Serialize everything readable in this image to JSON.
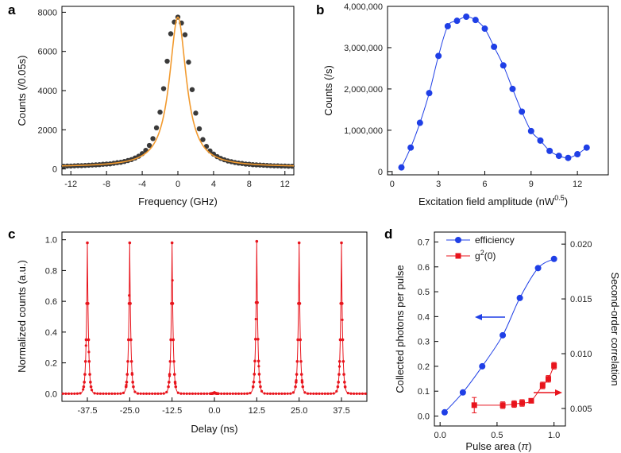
{
  "chart_data": [
    {
      "panel": "a",
      "type": "scatter",
      "xlabel": "Frequency (GHz)",
      "ylabel": "Counts (/0.05s)",
      "xlim": [
        -13,
        13
      ],
      "ylim": [
        -300,
        8300
      ],
      "xticks": [
        -12,
        -8,
        -4,
        0,
        4,
        8,
        12
      ],
      "yticks": [
        0,
        2000,
        4000,
        6000,
        8000
      ],
      "marker_color": "#3a3a3a",
      "fit_color": "#f29a2e",
      "fit": {
        "amplitude": 7650,
        "center": 0,
        "hwhm": 1.15,
        "baseline": 100
      },
      "points_x": [
        -12.8,
        -12.4,
        -12.0,
        -11.6,
        -11.2,
        -10.8,
        -10.4,
        -10.0,
        -9.6,
        -9.2,
        -8.8,
        -8.4,
        -8.0,
        -7.6,
        -7.2,
        -6.8,
        -6.4,
        -6.0,
        -5.6,
        -5.2,
        -4.8,
        -4.4,
        -4.0,
        -3.6,
        -3.2,
        -2.8,
        -2.4,
        -2.0,
        -1.6,
        -1.2,
        -0.8,
        -0.4,
        0.0,
        0.4,
        0.8,
        1.2,
        1.6,
        2.0,
        2.4,
        2.8,
        3.2,
        3.6,
        4.0,
        4.4,
        4.8,
        5.2,
        5.6,
        6.0,
        6.4,
        6.8,
        7.2,
        7.6,
        8.0,
        8.4,
        8.8,
        9.2,
        9.6,
        10.0,
        10.4,
        10.8,
        11.2,
        11.6,
        12.0,
        12.4,
        12.8
      ],
      "points_y": [
        140,
        150,
        150,
        160,
        170,
        170,
        180,
        190,
        200,
        210,
        220,
        240,
        250,
        260,
        290,
        320,
        340,
        380,
        430,
        480,
        560,
        650,
        780,
        950,
        1200,
        1550,
        2100,
        2900,
        4100,
        5500,
        6900,
        7500,
        7750,
        7450,
        6850,
        5450,
        4050,
        2850,
        2050,
        1500,
        1150,
        920,
        760,
        630,
        540,
        470,
        410,
        370,
        330,
        300,
        280,
        250,
        240,
        220,
        210,
        200,
        190,
        180,
        170,
        160,
        160,
        150,
        150,
        140,
        140
      ]
    },
    {
      "panel": "b",
      "type": "scatter",
      "xlabel_main": "Excitation field amplitude (nW",
      "xlabel_sup": "0.5",
      "xlabel_end": ")",
      "ylabel": "Counts (/s)",
      "xlim": [
        -0.3,
        14
      ],
      "ylim": [
        -80000,
        4000000
      ],
      "xticks": [
        0,
        3,
        6,
        9,
        12
      ],
      "yticks": [
        0,
        1000000,
        2000000,
        3000000,
        4000000
      ],
      "ytick_labels": [
        "0",
        "1,000,000",
        "2,000,000",
        "3,000,000",
        "4,000,000"
      ],
      "color": "#1f3fe6",
      "x": [
        0.6,
        1.2,
        1.8,
        2.4,
        3.0,
        3.6,
        4.2,
        4.8,
        5.4,
        6.0,
        6.6,
        7.2,
        7.8,
        8.4,
        9.0,
        9.6,
        10.2,
        10.8,
        11.4,
        12.0,
        12.6
      ],
      "values": [
        100000,
        580000,
        1180000,
        1900000,
        2800000,
        3520000,
        3650000,
        3750000,
        3670000,
        3460000,
        3020000,
        2570000,
        2000000,
        1450000,
        980000,
        750000,
        500000,
        380000,
        330000,
        420000,
        580000
      ]
    },
    {
      "panel": "c",
      "type": "line",
      "xlabel": "Delay (ns)",
      "ylabel": "Normalized counts (a.u.)",
      "xlim": [
        -45,
        45
      ],
      "ylim": [
        -0.05,
        1.05
      ],
      "xticks": [
        -37.5,
        -25.0,
        -12.5,
        0.0,
        12.5,
        25.0,
        37.5
      ],
      "xtick_labels": [
        "-37.5",
        "-25.0",
        "-12.5",
        "0.0",
        "12.5",
        "25.0",
        "37.5"
      ],
      "yticks": [
        0.0,
        0.2,
        0.4,
        0.6,
        0.8,
        1.0
      ],
      "ytick_labels": [
        "0.0",
        "0.2",
        "0.4",
        "0.6",
        "0.8",
        "1.0"
      ],
      "color": "#e8141c",
      "peak_centers": [
        -37.5,
        -25.0,
        -12.5,
        0.0,
        12.5,
        25.0,
        37.5
      ],
      "peak_heights": [
        0.98,
        0.98,
        0.98,
        0.007,
        0.99,
        0.98,
        0.98
      ],
      "peak_width_ns": 0.35
    },
    {
      "panel": "d",
      "type": "scatter",
      "xlabel_main": "Pulse area (",
      "xlabel_sym": "π",
      "xlabel_end": ")",
      "ylabel": "Collected photons per pulse",
      "ylabel_right": "Second-order correlation",
      "xlim": [
        -0.05,
        1.1
      ],
      "ylim": [
        -0.04,
        0.74
      ],
      "ylim_right": [
        0.0034,
        0.0211
      ],
      "xticks": [
        0.0,
        0.5,
        1.0
      ],
      "xtick_labels": [
        "0.0",
        "0.5",
        "1.0"
      ],
      "yticks": [
        0.0,
        0.1,
        0.2,
        0.3,
        0.4,
        0.5,
        0.6,
        0.7
      ],
      "ytick_labels": [
        "0.0",
        "0.1",
        "0.2",
        "0.3",
        "0.4",
        "0.5",
        "0.6",
        "0.7"
      ],
      "yticks_right": [
        0.005,
        0.01,
        0.015,
        0.02
      ],
      "ytick_labels_right": [
        "0.005",
        "0.010",
        "0.015",
        "0.020"
      ],
      "legend": [
        "efficiency",
        "g2(0)"
      ],
      "legend_g_main": "g",
      "legend_g_sup": "2",
      "legend_g_end": "(0)",
      "series": [
        {
          "name": "efficiency",
          "color": "#1f3fe6",
          "marker": "circle",
          "axis": "left",
          "x": [
            0.04,
            0.2,
            0.37,
            0.55,
            0.7,
            0.86,
            1.0
          ],
          "values": [
            0.015,
            0.095,
            0.2,
            0.325,
            0.475,
            0.595,
            0.632
          ]
        },
        {
          "name": "g2(0)",
          "color": "#e8141c",
          "marker": "square",
          "axis": "right",
          "x": [
            0.3,
            0.55,
            0.65,
            0.72,
            0.8,
            0.9,
            0.95,
            1.0
          ],
          "values": [
            0.0053,
            0.0053,
            0.0054,
            0.0055,
            0.0057,
            0.0071,
            0.0077,
            0.0089
          ],
          "errors": [
            0.0007,
            0.0003,
            0.0003,
            0.0003,
            0.0002,
            0.0003,
            0.0003,
            0.0003
          ]
        }
      ]
    }
  ],
  "panel_labels": {
    "a": "a",
    "b": "b",
    "c": "c",
    "d": "d"
  }
}
